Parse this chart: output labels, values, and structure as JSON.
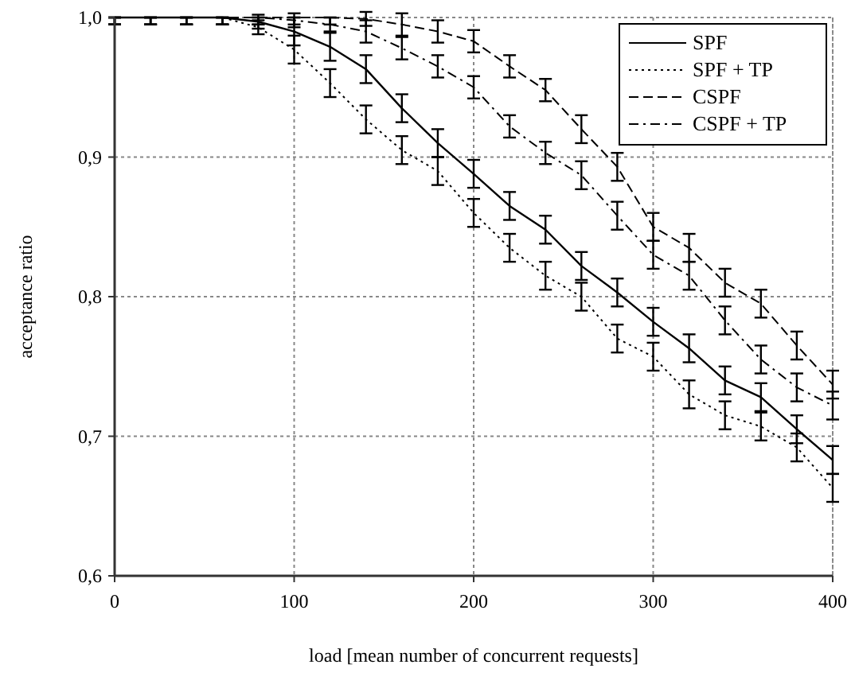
{
  "chart_data": {
    "type": "line",
    "xlabel": "load [mean number of concurrent requests]",
    "ylabel": "acceptance ratio",
    "x": [
      0,
      20,
      40,
      60,
      80,
      100,
      120,
      140,
      160,
      180,
      200,
      220,
      240,
      260,
      280,
      300,
      320,
      340,
      360,
      380,
      400
    ],
    "xlim": [
      0,
      400
    ],
    "xticks": [
      0,
      100,
      200,
      300,
      400
    ],
    "ylim": [
      0.6,
      1.0
    ],
    "yticks": [
      {
        "value": 0.6,
        "label": "0,6"
      },
      {
        "value": 0.7,
        "label": "0,7"
      },
      {
        "value": 0.8,
        "label": "0,8"
      },
      {
        "value": 0.9,
        "label": "0,9"
      },
      {
        "value": 1.0,
        "label": "1,0"
      }
    ],
    "grid": true,
    "legend": "top right",
    "series": [
      {
        "name": "SPF",
        "color": "#000000",
        "line_style": "solid",
        "values": [
          1,
          1,
          1,
          1,
          0.997,
          0.99,
          0.979,
          0.963,
          0.935,
          0.91,
          0.888,
          0.865,
          0.848,
          0.822,
          0.803,
          0.782,
          0.763,
          0.74,
          0.728,
          0.705,
          0.683
        ],
        "errors": [
          [
            0.995,
            1
          ],
          [
            0.995,
            1
          ],
          [
            0.995,
            1
          ],
          [
            0.995,
            1
          ],
          0.005,
          0.01,
          0.01,
          0.01,
          0.01,
          0.01,
          0.01,
          0.01,
          0.01,
          0.01,
          0.01,
          0.01,
          0.01,
          0.01,
          0.01,
          0.01,
          0.01
        ]
      },
      {
        "name": "SPF + TP",
        "color": "#000000",
        "line_style": "dotted",
        "values": [
          1,
          1,
          1,
          1,
          0.993,
          0.977,
          0.953,
          0.927,
          0.905,
          0.89,
          0.86,
          0.835,
          0.815,
          0.8,
          0.77,
          0.757,
          0.73,
          0.715,
          0.707,
          0.692,
          0.663
        ],
        "errors": [
          [
            0.995,
            1
          ],
          [
            0.995,
            1
          ],
          [
            0.995,
            1
          ],
          [
            0.995,
            1
          ],
          0.005,
          0.01,
          0.01,
          0.01,
          0.01,
          0.01,
          0.01,
          0.01,
          0.01,
          0.01,
          0.01,
          0.01,
          0.01,
          0.01,
          0.01,
          0.01,
          0.01
        ]
      },
      {
        "name": "CSPF",
        "color": "#000000",
        "line_style": "dashed",
        "values": [
          1,
          1,
          1,
          1,
          1,
          1,
          1,
          0.999,
          0.995,
          0.99,
          0.983,
          0.965,
          0.948,
          0.92,
          0.893,
          0.85,
          0.835,
          0.81,
          0.795,
          0.765,
          0.737
        ],
        "errors": [
          [
            0.995,
            1
          ],
          [
            0.995,
            1
          ],
          [
            0.995,
            1
          ],
          [
            0.995,
            1
          ],
          [
            0.995,
            1
          ],
          [
            0.995,
            1
          ],
          [
            0.995,
            1
          ],
          0.005,
          0.008,
          0.008,
          0.008,
          0.008,
          0.008,
          0.01,
          0.01,
          0.01,
          0.01,
          0.01,
          0.01,
          0.01,
          0.01
        ]
      },
      {
        "name": "CSPF + TP",
        "color": "#000000",
        "line_style": "dashdot",
        "values": [
          1,
          1,
          1,
          1,
          1,
          0.998,
          0.995,
          0.99,
          0.978,
          0.965,
          0.95,
          0.922,
          0.903,
          0.887,
          0.858,
          0.83,
          0.815,
          0.783,
          0.755,
          0.735,
          0.722
        ],
        "errors": [
          [
            0.995,
            1
          ],
          [
            0.995,
            1
          ],
          [
            0.995,
            1
          ],
          [
            0.995,
            1
          ],
          [
            0.995,
            1
          ],
          0.005,
          0.005,
          0.008,
          0.008,
          0.008,
          0.008,
          0.008,
          0.008,
          0.01,
          0.01,
          0.01,
          0.01,
          0.01,
          0.01,
          0.01,
          0.01
        ]
      }
    ]
  }
}
